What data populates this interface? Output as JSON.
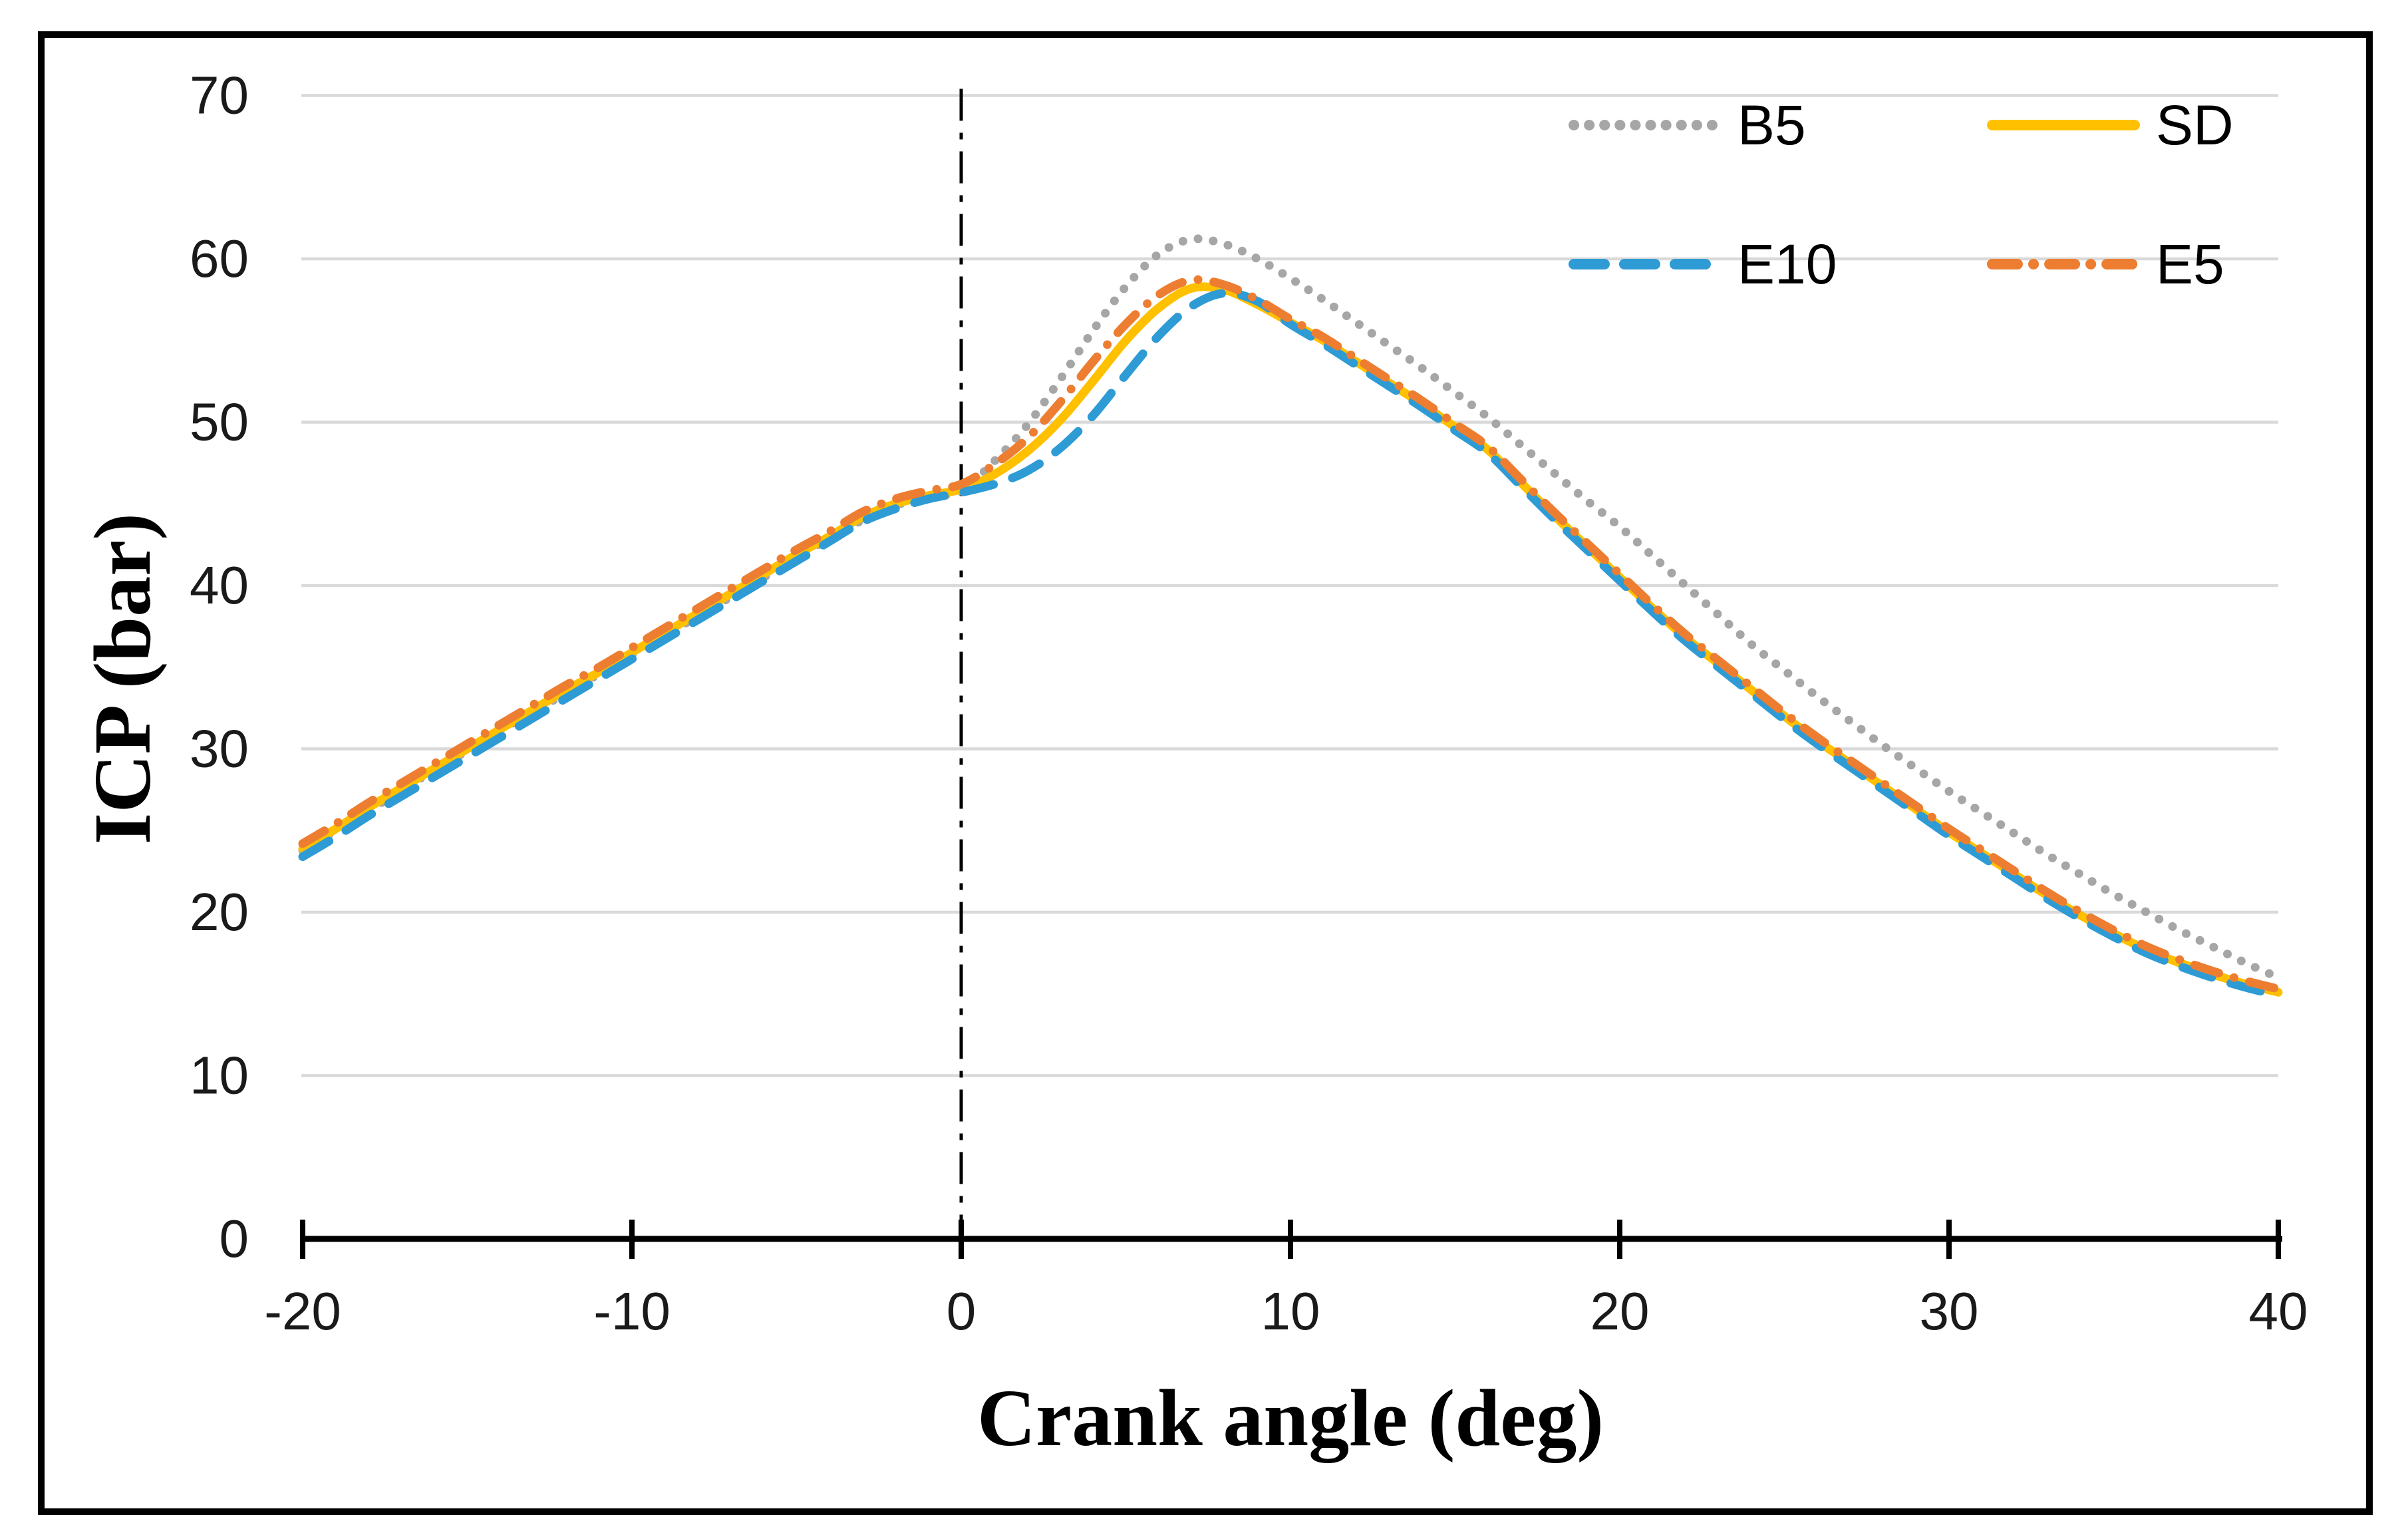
{
  "figure": {
    "background": "#FFFFFF",
    "border_color": "#000000",
    "text_color": "#1A1A1A",
    "gridline_color": "#D9D9D9",
    "axis_color": "#000000"
  },
  "chart_data": {
    "type": "line",
    "title": "",
    "xlabel": "Crank angle (deg)",
    "ylabel": "ICP (bar)",
    "xlim": [
      -20,
      40
    ],
    "ylim": [
      0,
      70
    ],
    "x_ticks": [
      -20,
      -10,
      0,
      10,
      20,
      30,
      40
    ],
    "y_ticks": [
      0,
      10,
      20,
      30,
      40,
      50,
      60,
      70
    ],
    "grid": "horizontal-major",
    "reference_line": {
      "x": 0,
      "style": "dash-dot",
      "color": "#000000"
    },
    "legend_position": "inside-top-right",
    "legend_rows": [
      [
        "B5",
        "SD"
      ],
      [
        "E10",
        "E5"
      ]
    ],
    "x_step": 1,
    "x_start": -20,
    "series": [
      {
        "name": "B5",
        "color": "#A6A6A6",
        "style": "dotted",
        "values": [
          23.8,
          25.0,
          26.2,
          27.5,
          28.7,
          29.9,
          31.1,
          32.3,
          33.4,
          34.6,
          35.8,
          37.0,
          38.1,
          39.3,
          40.5,
          41.7,
          42.9,
          44.0,
          44.9,
          45.4,
          45.8,
          47.6,
          49.8,
          52.6,
          55.6,
          58.3,
          60.3,
          61.2,
          60.9,
          60.0,
          58.8,
          57.5,
          56.1,
          54.7,
          53.3,
          51.8,
          50.3,
          48.6,
          46.9,
          45.2,
          43.6,
          41.8,
          40.0,
          38.2,
          36.4,
          34.8,
          33.2,
          31.7,
          30.2,
          28.8,
          27.4,
          26.1,
          24.8,
          23.5,
          22.3,
          21.1,
          20.0,
          18.9,
          17.9,
          16.9,
          16.0
        ]
      },
      {
        "name": "SD",
        "color": "#FFC000",
        "style": "solid",
        "values": [
          23.9,
          25.1,
          26.4,
          27.6,
          28.8,
          30.0,
          31.2,
          32.4,
          33.6,
          34.7,
          35.9,
          37.1,
          38.3,
          39.5,
          40.7,
          41.9,
          43.0,
          44.2,
          45.0,
          45.5,
          45.9,
          46.8,
          48.2,
          50.1,
          52.5,
          55.0,
          57.0,
          58.2,
          58.1,
          57.2,
          56.1,
          55.0,
          53.7,
          52.4,
          51.1,
          49.7,
          48.3,
          46.3,
          44.3,
          42.4,
          40.5,
          38.6,
          36.8,
          35.2,
          33.6,
          32.0,
          30.5,
          29.1,
          27.7,
          26.3,
          24.9,
          23.6,
          22.3,
          21.0,
          19.8,
          18.7,
          17.7,
          16.9,
          16.2,
          15.6,
          15.1
        ]
      },
      {
        "name": "E10",
        "color": "#2E9BD5",
        "style": "dashed",
        "values": [
          23.4,
          24.6,
          25.9,
          27.1,
          28.3,
          29.5,
          30.7,
          31.9,
          33.1,
          34.3,
          35.5,
          36.7,
          37.9,
          39.1,
          40.3,
          41.5,
          42.7,
          43.9,
          44.7,
          45.3,
          45.7,
          46.2,
          47.0,
          48.4,
          50.4,
          52.9,
          55.3,
          57.1,
          57.9,
          57.4,
          56.0,
          54.8,
          53.5,
          52.2,
          50.9,
          49.5,
          48.1,
          46.1,
          44.1,
          42.2,
          40.3,
          38.4,
          36.6,
          35.0,
          33.4,
          31.8,
          30.3,
          28.9,
          27.5,
          26.1,
          24.7,
          23.4,
          22.1,
          20.8,
          19.6,
          18.5,
          17.5,
          16.7,
          16.0,
          15.4,
          14.9
        ]
      },
      {
        "name": "E5",
        "color": "#ED7D31",
        "style": "dash-dot",
        "values": [
          24.2,
          25.4,
          26.7,
          27.9,
          29.1,
          30.3,
          31.5,
          32.7,
          33.9,
          35.0,
          36.2,
          37.4,
          38.6,
          39.8,
          41.0,
          42.2,
          43.3,
          44.5,
          45.3,
          45.8,
          46.2,
          47.4,
          49.0,
          51.2,
          53.7,
          56.0,
          57.8,
          58.7,
          58.4,
          57.5,
          56.3,
          55.2,
          53.9,
          52.6,
          51.3,
          49.9,
          48.5,
          46.5,
          44.5,
          42.6,
          40.7,
          38.8,
          37.0,
          35.4,
          33.8,
          32.2,
          30.7,
          29.3,
          27.9,
          26.5,
          25.1,
          23.8,
          22.5,
          21.2,
          20.0,
          18.9,
          17.9,
          17.1,
          16.4,
          15.8,
          15.3
        ]
      }
    ]
  }
}
